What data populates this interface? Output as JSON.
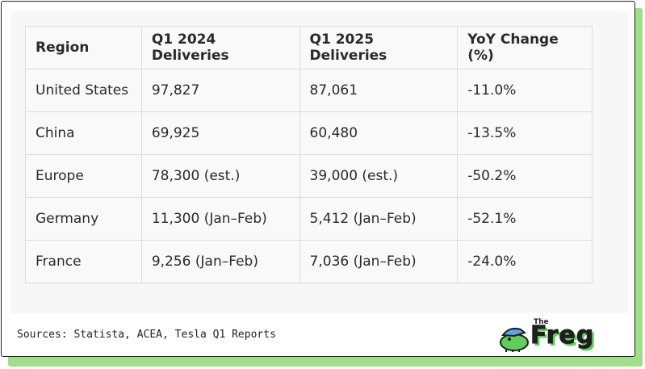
{
  "table": {
    "headers": [
      "Region",
      "Q1 2024 Deliveries",
      "Q1 2025 Deliveries",
      "YoY Change (%)"
    ],
    "rows": [
      [
        "United States",
        "97,827",
        "87,061",
        "-11.0%"
      ],
      [
        "China",
        "69,925",
        "60,480",
        "-13.5%"
      ],
      [
        "Europe",
        "78,300 (est.)",
        "39,000 (est.)",
        "-50.2%"
      ],
      [
        "Germany",
        "11,300 (Jan–Feb)",
        "5,412 (Jan–Feb)",
        "-52.1%"
      ],
      [
        "France",
        "9,256 (Jan–Feb)",
        "7,036 (Jan–Feb)",
        "-24.0%"
      ]
    ]
  },
  "footer": {
    "sources": "Sources: Statista, ACEA, Tesla Q1 Reports",
    "logo_small": "The",
    "logo_main": "Freg"
  },
  "colors": {
    "accent_green": "#9fdf8a",
    "logo_green": "#5fcf5a",
    "frog_cap": "#5aa7e6"
  },
  "icons": [
    "frog-mascot-icon"
  ]
}
